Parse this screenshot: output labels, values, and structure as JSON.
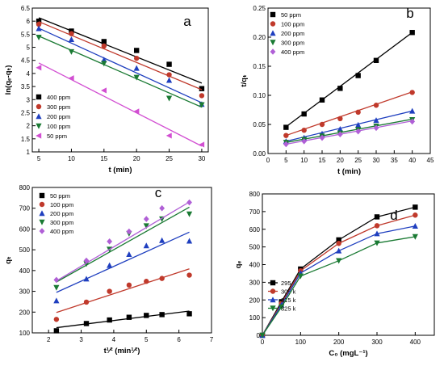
{
  "chart_data": [
    {
      "panel": "a",
      "type": "scatter",
      "xlabel": "t (min)",
      "ylabel": "ln(qₑ-qₜ)",
      "xlim": [
        4,
        31
      ],
      "ylim": [
        1.0,
        6.5
      ],
      "xticks": [
        5,
        10,
        15,
        20,
        25,
        30
      ],
      "yticks": [
        1.0,
        1.5,
        2.0,
        2.5,
        3.0,
        3.5,
        4.0,
        4.5,
        5.0,
        5.5,
        6.0,
        6.5
      ],
      "legend_position": "bottom-left",
      "grid": false,
      "series": [
        {
          "name": "400 ppm",
          "marker": "square",
          "color": "#000000",
          "x": [
            5,
            10,
            15,
            20,
            25,
            30
          ],
          "y": [
            6.0,
            5.62,
            5.22,
            4.88,
            4.35,
            3.42
          ],
          "fit": [
            6.13,
            3.63
          ]
        },
        {
          "name": "300 ppm",
          "marker": "circle",
          "color": "#c0392b",
          "x": [
            5,
            10,
            15,
            20,
            25,
            30
          ],
          "y": [
            5.88,
            5.52,
            5.05,
            4.58,
            3.95,
            3.15
          ],
          "fit": [
            5.98,
            3.38
          ]
        },
        {
          "name": "200 ppm",
          "marker": "triangle-up",
          "color": "#1f3fbf",
          "x": [
            5,
            10,
            15,
            20,
            25,
            30
          ],
          "y": [
            5.72,
            5.3,
            4.52,
            4.2,
            3.74,
            2.82
          ],
          "fit": [
            5.73,
            2.88
          ]
        },
        {
          "name": "100 ppm",
          "marker": "triangle-down",
          "color": "#1a7a33",
          "x": [
            5,
            10,
            15,
            20,
            25,
            30
          ],
          "y": [
            5.38,
            4.83,
            4.38,
            3.85,
            3.05,
            2.8
          ],
          "fit": [
            5.43,
            2.71
          ]
        },
        {
          "name": "50 ppm",
          "marker": "triangle-left",
          "color": "#d24fd2",
          "x": [
            5,
            10,
            15,
            20,
            25,
            30
          ],
          "y": [
            4.22,
            3.82,
            3.35,
            2.55,
            1.62,
            1.28
          ],
          "fit": [
            4.4,
            1.22
          ]
        }
      ]
    },
    {
      "panel": "b",
      "type": "scatter",
      "xlabel": "t (min)",
      "ylabel": "t/qₜ",
      "xlim": [
        0,
        45
      ],
      "ylim": [
        0.0,
        0.25
      ],
      "xticks": [
        0,
        5,
        10,
        15,
        20,
        25,
        30,
        35,
        40,
        45
      ],
      "yticks": [
        0.0,
        0.05,
        0.1,
        0.15,
        0.2,
        0.25
      ],
      "yticklabels": [
        "0.00",
        "0.05",
        "0.10",
        "0.15",
        "0.20",
        "0.25"
      ],
      "legend_position": "top-left",
      "grid": false,
      "series": [
        {
          "name": "50 ppm",
          "marker": "square",
          "color": "#000000",
          "x": [
            5,
            10,
            15,
            20,
            25,
            30,
            40
          ],
          "y": [
            0.045,
            0.068,
            0.092,
            0.112,
            0.134,
            0.16,
            0.208
          ],
          "fit": [
            0.046,
            0.208
          ]
        },
        {
          "name": "100 ppm",
          "marker": "circle",
          "color": "#c0392b",
          "x": [
            5,
            10,
            15,
            20,
            25,
            30,
            40
          ],
          "y": [
            0.031,
            0.04,
            0.05,
            0.06,
            0.071,
            0.083,
            0.105
          ],
          "fit": [
            0.031,
            0.106
          ]
        },
        {
          "name": "200 ppm",
          "marker": "triangle-up",
          "color": "#1f3fbf",
          "x": [
            5,
            10,
            15,
            20,
            25,
            30,
            40
          ],
          "y": [
            0.021,
            0.027,
            0.034,
            0.042,
            0.049,
            0.057,
            0.073
          ],
          "fit": [
            0.021,
            0.073
          ]
        },
        {
          "name": "300 ppm",
          "marker": "triangle-down",
          "color": "#1a7a33",
          "x": [
            5,
            10,
            15,
            20,
            25,
            30,
            40
          ],
          "y": [
            0.019,
            0.024,
            0.03,
            0.035,
            0.041,
            0.047,
            0.058
          ],
          "fit": [
            0.019,
            0.059
          ]
        },
        {
          "name": "400 ppm",
          "marker": "diamond",
          "color": "#b05fd6",
          "x": [
            5,
            10,
            15,
            20,
            25,
            30,
            40
          ],
          "y": [
            0.016,
            0.021,
            0.027,
            0.033,
            0.038,
            0.044,
            0.055
          ],
          "fit": [
            0.016,
            0.056
          ]
        }
      ]
    },
    {
      "panel": "c",
      "type": "scatter",
      "xlabel": "t¹⁄² (min¹⁄²)",
      "ylabel": "qₜ",
      "xlim": [
        1.5,
        7
      ],
      "ylim": [
        100,
        800
      ],
      "xticks": [
        2,
        3,
        4,
        5,
        6,
        7
      ],
      "yticks": [
        100,
        200,
        300,
        400,
        500,
        600,
        700,
        800
      ],
      "legend_position": "top-left",
      "grid": false,
      "series": [
        {
          "name": "50 ppm",
          "marker": "square",
          "color": "#000000",
          "x": [
            2.24,
            3.16,
            3.87,
            4.47,
            5.0,
            5.48,
            6.32
          ],
          "y": [
            110,
            145,
            162,
            175,
            184,
            188,
            192
          ],
          "fit": [
            125,
            205
          ]
        },
        {
          "name": "100 ppm",
          "marker": "circle",
          "color": "#c0392b",
          "x": [
            2.24,
            3.16,
            3.87,
            4.47,
            5.0,
            5.48,
            6.32
          ],
          "y": [
            165,
            248,
            300,
            330,
            348,
            362,
            378
          ],
          "fit": [
            198,
            408
          ]
        },
        {
          "name": "200 ppm",
          "marker": "triangle-up",
          "color": "#1f3fbf",
          "x": [
            2.24,
            3.16,
            3.87,
            4.47,
            5.0,
            5.48,
            6.32
          ],
          "y": [
            255,
            360,
            425,
            478,
            520,
            545,
            542
          ],
          "fit": [
            295,
            585
          ]
        },
        {
          "name": "300 ppm",
          "marker": "triangle-down",
          "color": "#1a7a33",
          "x": [
            2.24,
            3.16,
            3.87,
            4.47,
            5.0,
            5.48,
            6.32
          ],
          "y": [
            318,
            432,
            502,
            578,
            615,
            648,
            672
          ],
          "fit": [
            345,
            705
          ]
        },
        {
          "name": "400 ppm",
          "marker": "diamond",
          "color": "#b05fd6",
          "x": [
            2.24,
            3.16,
            3.87,
            4.47,
            5.0,
            5.48,
            6.32
          ],
          "y": [
            355,
            448,
            540,
            588,
            648,
            700,
            728
          ],
          "fit": [
            350,
            730
          ]
        }
      ]
    },
    {
      "panel": "d",
      "type": "line",
      "xlabel": "C₀  (mgL⁻¹)",
      "ylabel": "qₑ",
      "xlim": [
        0,
        450
      ],
      "ylim": [
        0,
        800
      ],
      "xticks": [
        0,
        100,
        200,
        300,
        400
      ],
      "yticks": [
        0,
        100,
        200,
        300,
        400,
        500,
        600,
        700,
        800
      ],
      "legend_position": "left",
      "grid": false,
      "series": [
        {
          "name": "295 k",
          "marker": "square",
          "color": "#000000",
          "x": [
            0,
            50,
            100,
            200,
            300,
            400
          ],
          "y": [
            0,
            190,
            375,
            540,
            670,
            725
          ]
        },
        {
          "name": "305 k",
          "marker": "circle",
          "color": "#c0392b",
          "x": [
            0,
            50,
            100,
            200,
            300,
            400
          ],
          "y": [
            0,
            180,
            365,
            520,
            620,
            680
          ]
        },
        {
          "name": "315 k",
          "marker": "triangle-up",
          "color": "#1f3fbf",
          "x": [
            0,
            50,
            100,
            200,
            300,
            400
          ],
          "y": [
            0,
            172,
            352,
            478,
            575,
            618
          ]
        },
        {
          "name": "325 k",
          "marker": "triangle-down",
          "color": "#1a7a33",
          "x": [
            0,
            50,
            100,
            200,
            300,
            400
          ],
          "y": [
            0,
            160,
            335,
            422,
            522,
            558
          ]
        }
      ]
    }
  ]
}
